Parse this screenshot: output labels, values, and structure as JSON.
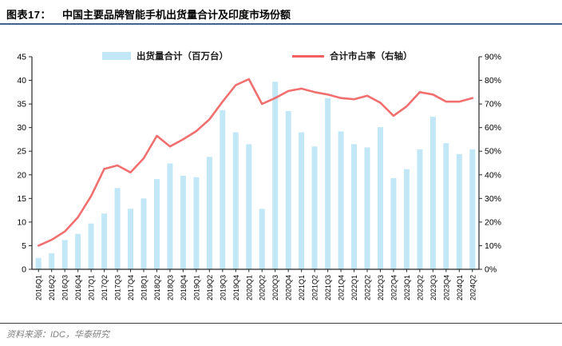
{
  "header": {
    "figure_label": "图表17：",
    "title": "中国主要品牌智能手机出货量合计及印度市场份额"
  },
  "footer": {
    "source": "资料来源：IDC，华泰研究"
  },
  "colors": {
    "bar": "#c2e7f6",
    "line": "#f15f5f",
    "title_rule": "#45628c",
    "axis": "#262626",
    "tick_text": "#000000",
    "source_text": "#7f7f7f"
  },
  "chart_data": {
    "type": "bar",
    "title": "",
    "categories": [
      "2016Q1",
      "2016Q2",
      "2016Q3",
      "2016Q4",
      "2017Q1",
      "2017Q2",
      "2017Q3",
      "2017Q4",
      "2018Q1",
      "2018Q2",
      "2018Q3",
      "2018Q4",
      "2019Q1",
      "2019Q2",
      "2019Q3",
      "2019Q4",
      "2020Q1",
      "2020Q2",
      "2020Q3",
      "2020Q4",
      "2021Q1",
      "2021Q2",
      "2021Q3",
      "2021Q4",
      "2022Q1",
      "2022Q2",
      "2022Q3",
      "2022Q4",
      "2023Q1",
      "2023Q2",
      "2023Q3",
      "2023Q4",
      "2024Q1",
      "2024Q2"
    ],
    "series": [
      {
        "name": "出货量合计（百万台）",
        "type": "bar",
        "axis": "left",
        "color": "#c2e7f6",
        "values": [
          2.4,
          3.4,
          6.2,
          7.5,
          9.7,
          11.8,
          17.2,
          12.8,
          15.0,
          19.1,
          22.4,
          19.8,
          19.5,
          23.8,
          33.7,
          29.0,
          26.5,
          12.8,
          39.7,
          33.5,
          29.0,
          26.0,
          36.2,
          29.2,
          26.5,
          25.8,
          30.1,
          19.3,
          21.2,
          25.4,
          32.3,
          26.7,
          24.4,
          25.4
        ]
      },
      {
        "name": "合计市占率（右轴）",
        "type": "line",
        "axis": "right",
        "color": "#f15f5f",
        "values": [
          10,
          12.5,
          16,
          22,
          31,
          42.5,
          44,
          41,
          47,
          56.5,
          52,
          55,
          58.5,
          63.5,
          71,
          78,
          80.5,
          70,
          72.5,
          75.5,
          76.5,
          75,
          74,
          72.5,
          72,
          73.5,
          70.5,
          65,
          69,
          75,
          74,
          71,
          71,
          72.5
        ]
      }
    ],
    "left_axis": {
      "min": 0,
      "max": 45,
      "step": 5,
      "ticks": [
        "0",
        "5",
        "10",
        "15",
        "20",
        "25",
        "30",
        "35",
        "40",
        "45"
      ]
    },
    "right_axis": {
      "min": 0,
      "max": 90,
      "step": 10,
      "ticks": [
        "0%",
        "10%",
        "20%",
        "30%",
        "40%",
        "50%",
        "60%",
        "70%",
        "80%",
        "90%"
      ]
    },
    "legend_position": "top",
    "grid": false
  }
}
